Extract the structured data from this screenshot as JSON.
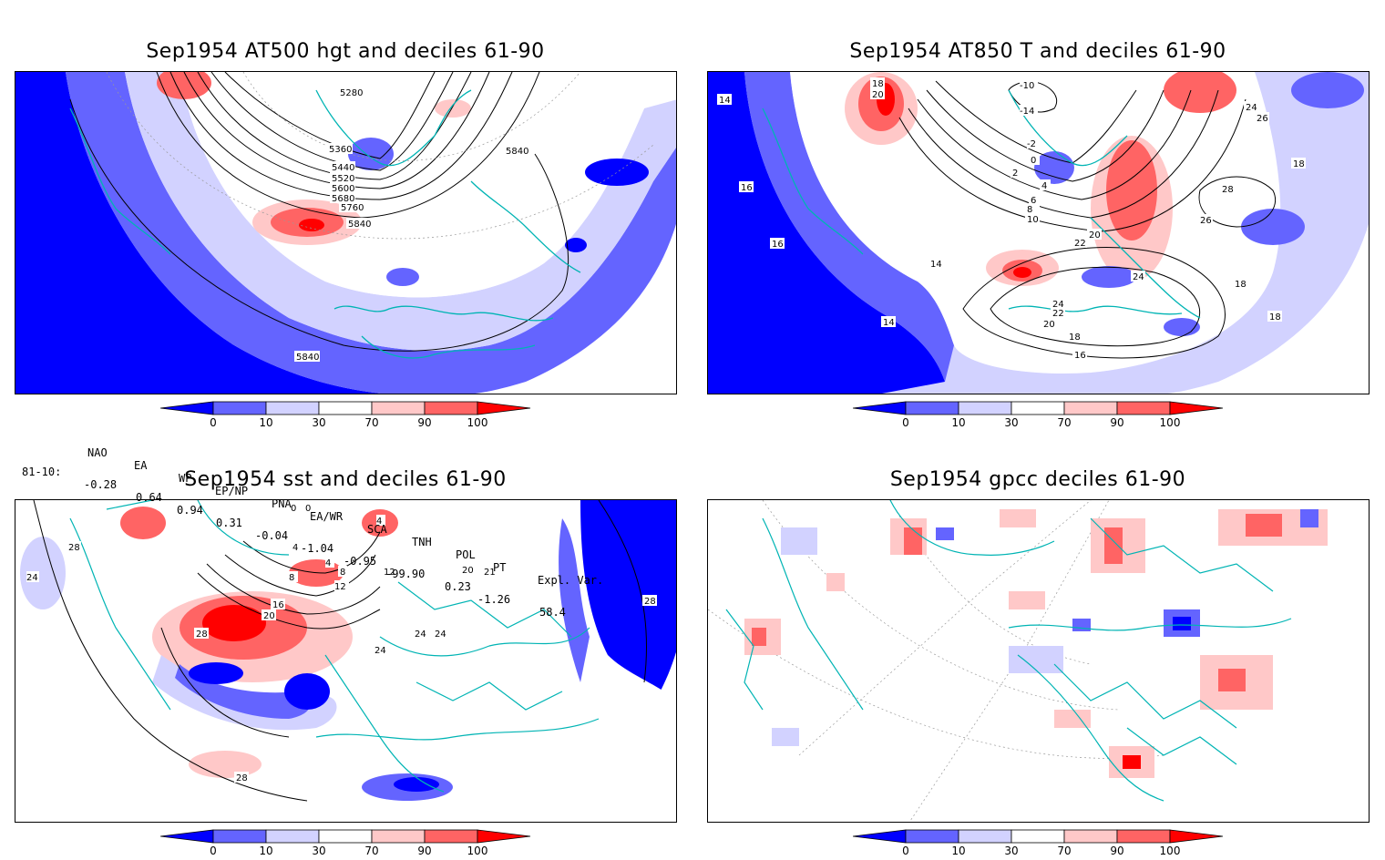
{
  "panels": [
    {
      "id": "p1",
      "title": "Sep1954 AT500 hgt and deciles 61-90"
    },
    {
      "id": "p2",
      "title": "Sep1954 AT850 T and deciles 61-90"
    },
    {
      "id": "p3",
      "title": "Sep1954 sst and deciles 61-90"
    },
    {
      "id": "p4",
      "title": "Sep1954 gpcc deciles 61-90"
    }
  ],
  "colorbar": {
    "ticks": [
      "0",
      "10",
      "30",
      "70",
      "90",
      "100"
    ],
    "colors": {
      "deep_blue": "#0000ff",
      "mid_blue": "#6464ff",
      "light_blue": "#d2d2ff",
      "white": "#ffffff",
      "light_red": "#ffc8c8",
      "mid_red": "#ff6464",
      "deep_red": "#ff0000"
    }
  },
  "indices": {
    "headers": [
      "NAO",
      "EA",
      "WP",
      "EP/NP",
      "PNA",
      "EA/WR",
      "SCA",
      "TNH",
      "POL",
      "PT",
      "Expl. Var."
    ],
    "row_label": "81-10:",
    "values": [
      "-0.28",
      "0.64",
      "0.94",
      "0.31",
      "-0.04",
      "-1.04",
      "-0.95",
      "-99.90",
      "0.23",
      "-1.26",
      "58.4"
    ]
  },
  "contour_labels": {
    "p1": [
      "5280",
      "5360",
      "5440",
      "5520",
      "5600",
      "5680",
      "5760",
      "5840",
      "5840",
      "5840"
    ],
    "p2": [
      "14",
      "18",
      "20",
      "18",
      "16",
      "16",
      "-10",
      "-14",
      "-1",
      "-2",
      "0",
      "2",
      "4",
      "6",
      "8",
      "10",
      "12",
      "20",
      "22",
      "24",
      "26",
      "28",
      "16",
      "16",
      "18",
      "16",
      "14",
      "14",
      "16",
      "18",
      "26",
      "24",
      "22",
      "20",
      "18",
      "16",
      "18",
      "18",
      "16",
      "24",
      "16",
      "18"
    ],
    "p3": [
      "28",
      "24",
      "0",
      "0",
      "4",
      "4",
      "4",
      "4",
      "8",
      "8",
      "12",
      "12",
      "16",
      "20",
      "24",
      "24",
      "24",
      "28",
      "28",
      "20",
      "21",
      "28"
    ]
  },
  "map_colors": {
    "coast": "#00b4b4",
    "grid": "#999999",
    "contour": "#000000"
  }
}
